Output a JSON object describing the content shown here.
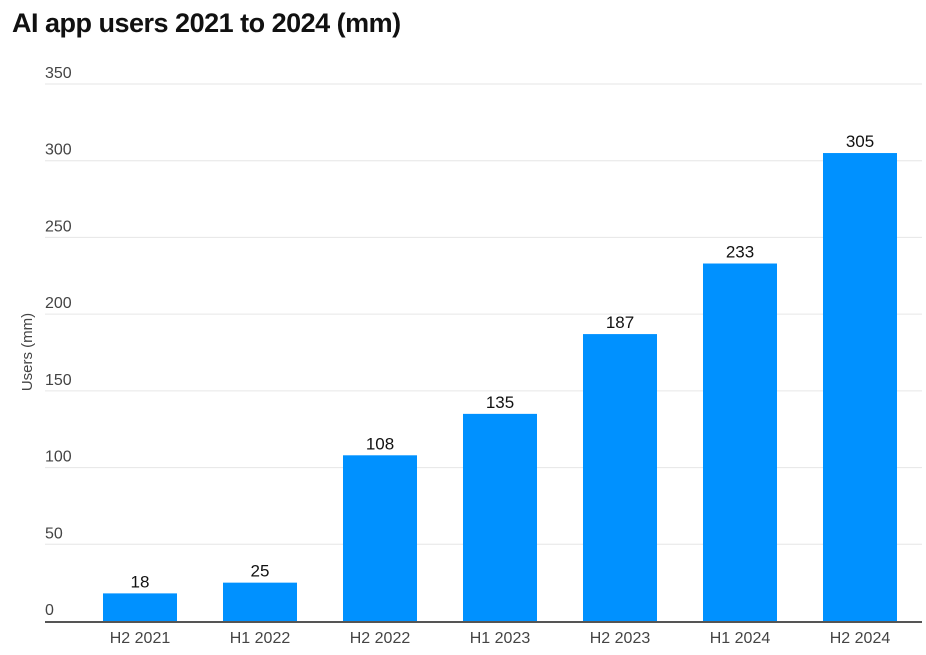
{
  "chart_data": {
    "type": "bar",
    "title": "AI app users 2021 to 2024 (mm)",
    "xlabel": "",
    "ylabel": "Users (mm)",
    "categories": [
      "H2 2021",
      "H1 2022",
      "H2 2022",
      "H1 2023",
      "H2 2023",
      "H1 2024",
      "H2 2024"
    ],
    "values": [
      18,
      25,
      108,
      135,
      187,
      233,
      305
    ],
    "data_labels": [
      "18",
      "25",
      "108",
      "135",
      "187",
      "233",
      "305"
    ],
    "ylim": [
      0,
      350
    ],
    "yticks": [
      0,
      50,
      100,
      150,
      200,
      250,
      300,
      350
    ],
    "ytick_labels": [
      "0",
      "50",
      "100",
      "150",
      "200",
      "250",
      "300",
      "350"
    ],
    "grid": true,
    "legend": "none",
    "bar_color": "#0091FF"
  }
}
